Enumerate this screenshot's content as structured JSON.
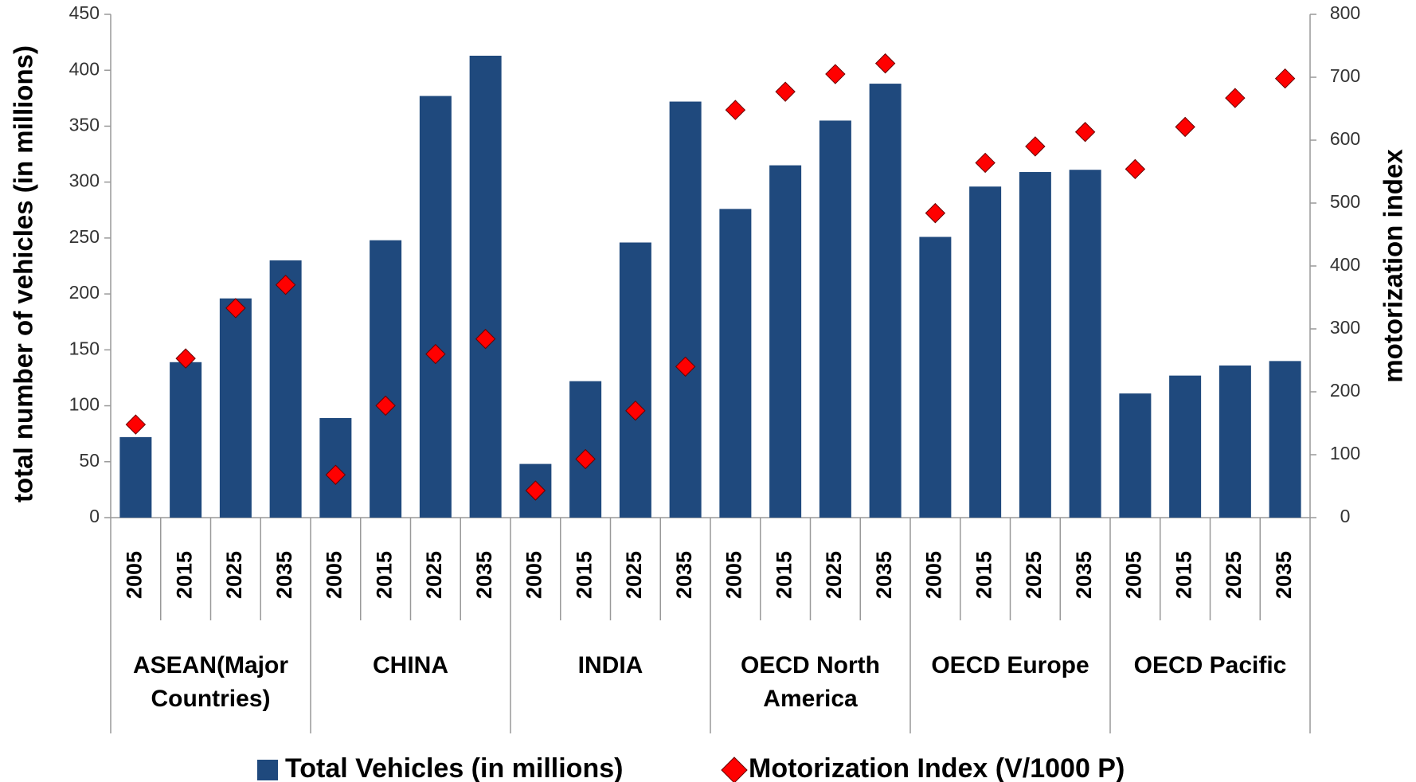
{
  "chart_data": {
    "type": "bar_scatter",
    "y_label": "total number of vehicles (in millions)",
    "y2_label": "motorization index",
    "categories": [
      "2005",
      "2015",
      "2025",
      "2035",
      "2005",
      "2015",
      "2025",
      "2035",
      "2005",
      "2015",
      "2025",
      "2035",
      "2005",
      "2015",
      "2025",
      "2035",
      "2005",
      "2015",
      "2025",
      "2035",
      "2005",
      "2015",
      "2025",
      "2035"
    ],
    "groups": [
      "ASEAN(Major Countries)",
      "CHINA",
      "INDIA",
      "OECD North America",
      "OECD Europe",
      "OECD Pacific"
    ],
    "series": [
      {
        "name": "Total Vehicles (in millions)",
        "color": "#1f497d",
        "axis": "y",
        "values": [
          72,
          139,
          196,
          230,
          89,
          248,
          377,
          413,
          48,
          122,
          246,
          372,
          276,
          315,
          355,
          388,
          251,
          296,
          309,
          311,
          111,
          127,
          136,
          140
        ]
      },
      {
        "name": "Motorization Index (V/1000 P)",
        "color": "#ff0000",
        "axis": "y2",
        "values": [
          148,
          253,
          333,
          370,
          68,
          178,
          260,
          284,
          43,
          93,
          170,
          240,
          648,
          677,
          705,
          722,
          484,
          564,
          590,
          613,
          554,
          621,
          667,
          698
        ]
      }
    ],
    "ylim": [
      0,
      450
    ],
    "yticks": [
      0,
      50,
      100,
      150,
      200,
      250,
      300,
      350,
      400,
      450
    ],
    "y2lim": [
      0,
      800
    ],
    "y2ticks": [
      0,
      100,
      200,
      300,
      400,
      500,
      600,
      700,
      800
    ],
    "legend": "bottom"
  }
}
